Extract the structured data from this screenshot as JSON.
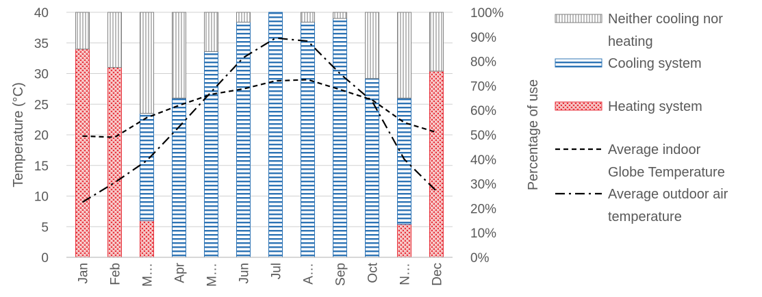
{
  "chart_data": {
    "type": "bar",
    "stacked": true,
    "categories": [
      "Jan",
      "Feb",
      "M…",
      "Apr",
      "M…",
      "Jun",
      "Jul",
      "A…",
      "Sep",
      "Oct",
      "N…",
      "Dec"
    ],
    "series": [
      {
        "name": "Heating system",
        "axis": "right",
        "pattern": "red-dots",
        "color": "#e8323c",
        "values": [
          85,
          77.5,
          15,
          0,
          0,
          0,
          0,
          0,
          0,
          0,
          13.5,
          76
        ]
      },
      {
        "name": "Cooling system",
        "axis": "right",
        "pattern": "blue-horizontal-stripes",
        "color": "#2e74b5",
        "values": [
          0,
          0,
          43.75,
          65,
          84,
          96,
          100,
          96,
          97.5,
          73,
          51.5,
          0
        ]
      },
      {
        "name": "Neither cooling nor heating",
        "axis": "right",
        "pattern": "vertical-stripes",
        "color": "#000000",
        "values": [
          15,
          22.5,
          41.25,
          35,
          16,
          4,
          0,
          4,
          2.5,
          27,
          35,
          24
        ]
      },
      {
        "name": "Average indoor Globe Temperature",
        "type": "line",
        "axis": "left",
        "dash": "dashed",
        "values": [
          19.8,
          19.6,
          22.8,
          24.8,
          26.6,
          27.5,
          28.8,
          29.0,
          27.4,
          25.7,
          22.0,
          20.4
        ]
      },
      {
        "name": "Average outdoor air temperature",
        "type": "line",
        "axis": "left",
        "dash": "dash-dot",
        "values": [
          9.0,
          12.2,
          15.8,
          21.3,
          27.0,
          32.6,
          35.8,
          35.3,
          30.0,
          25.5,
          16.0,
          10.8
        ]
      }
    ],
    "y_left": {
      "label": "Temperature (°C)",
      "range": [
        0,
        40
      ],
      "ticks": [
        "0",
        "5",
        "10",
        "15",
        "20",
        "25",
        "30",
        "35",
        "40"
      ]
    },
    "y_right": {
      "label": "Percentage of use",
      "range": [
        0,
        100
      ],
      "ticks": [
        "0%",
        "10%",
        "20%",
        "30%",
        "40%",
        "50%",
        "60%",
        "70%",
        "80%",
        "90%",
        "100%"
      ]
    },
    "grid": true,
    "legend_position": "right",
    "legend": [
      {
        "lines": [
          "Neither cooling nor",
          "heating"
        ]
      },
      {
        "lines": [
          "Cooling system"
        ]
      },
      {
        "lines": [
          "Heating system"
        ]
      },
      {
        "lines": [
          "Average indoor",
          "Globe Temperature"
        ]
      },
      {
        "lines": [
          "Average outdoor air",
          "temperature"
        ]
      }
    ]
  }
}
